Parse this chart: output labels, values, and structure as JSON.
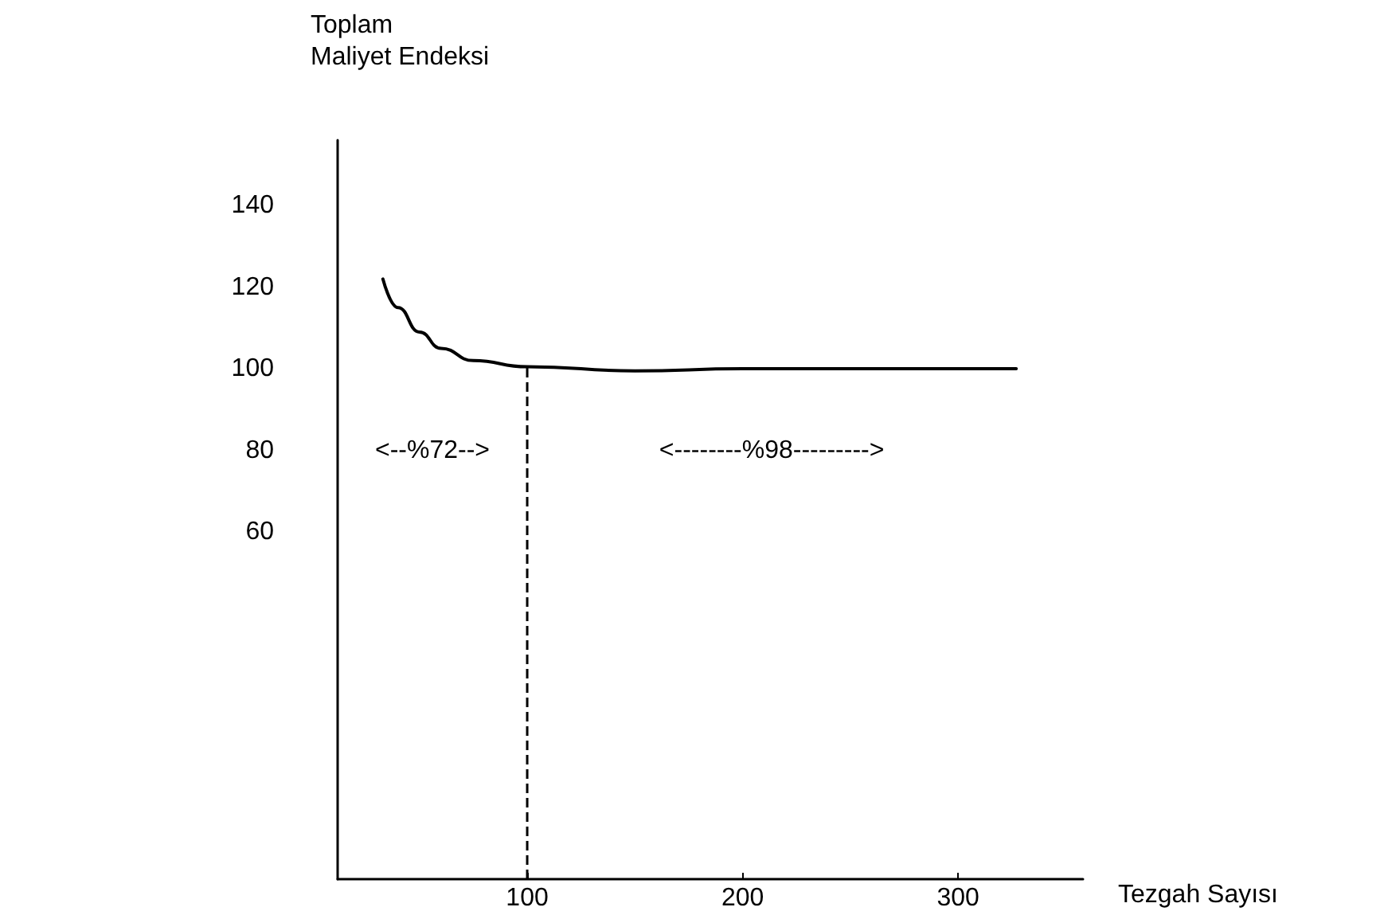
{
  "chart_data": {
    "type": "line",
    "ylabel": "Toplam\nMaliyet Endeksi",
    "xlabel": "Tezgah Sayısı",
    "x": [
      33,
      40,
      50,
      60,
      75,
      100,
      150,
      200,
      327
    ],
    "series": [
      {
        "color": "#000000",
        "values": [
          122,
          115,
          109,
          105,
          102,
          100.5,
          99.5,
          100,
          100
        ]
      }
    ],
    "xlim": [
      12,
      358
    ],
    "xticks": [
      100,
      200,
      300
    ],
    "ylim": [
      -25,
      156
    ],
    "yticks": [
      60,
      80,
      100,
      120,
      140
    ],
    "ref_lines": [
      {
        "axis": "x",
        "value": 100,
        "line_style": "dashed",
        "color": "#000000"
      }
    ],
    "annotations": [
      "<--%72-->",
      "<--------%98--------->"
    ],
    "grid": false,
    "marker": "none",
    "line_style": "solid"
  }
}
